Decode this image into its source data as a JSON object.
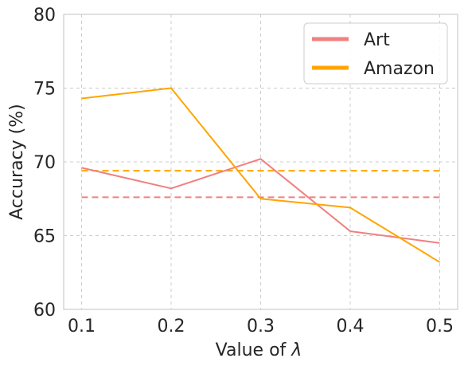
{
  "chart_data": {
    "type": "line",
    "x": [
      0.1,
      0.2,
      0.3,
      0.4,
      0.5
    ],
    "x_tick_labels": [
      "0.1",
      "0.2",
      "0.3",
      "0.4",
      "0.5"
    ],
    "y_ticks": [
      60,
      65,
      70,
      75,
      80
    ],
    "xlabel_prefix": "Value of ",
    "xlabel_symbol": "λ",
    "ylabel": "Accuracy (%)",
    "ylim": [
      60,
      80
    ],
    "xlim": [
      0.08,
      0.52
    ],
    "grid": true,
    "grid_style": "dashed",
    "legend_position": "top-right",
    "series": [
      {
        "name": "Art",
        "color": "#F08080",
        "values": [
          69.6,
          68.2,
          70.2,
          65.3,
          64.5
        ],
        "baseline": 67.6
      },
      {
        "name": "Amazon",
        "color": "#FFA500",
        "values": [
          74.3,
          75.0,
          67.5,
          66.9,
          63.2
        ],
        "baseline": 69.4
      }
    ]
  }
}
